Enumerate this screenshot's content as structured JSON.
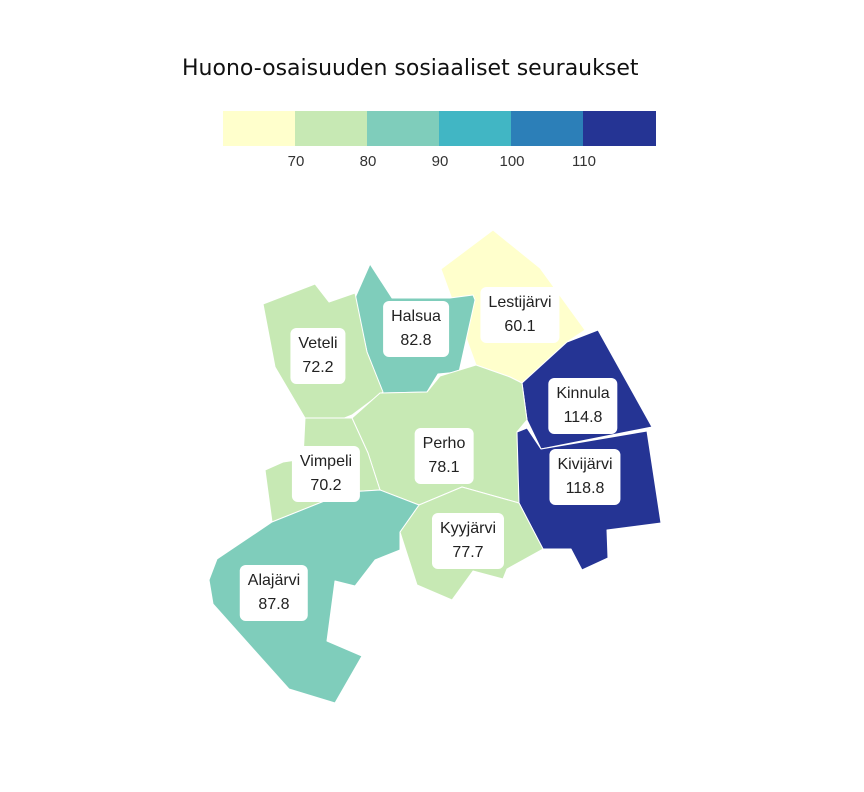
{
  "title": "Huono-osaisuuden sosiaaliset seuraukset",
  "legend": {
    "colors": [
      "#ffffcc",
      "#c7e9b4",
      "#7fcdbb",
      "#41b6c4",
      "#2c7fb8",
      "#253494"
    ],
    "ticks": [
      "70",
      "80",
      "90",
      "100",
      "110"
    ]
  },
  "regions": [
    {
      "id": "lestijarvi",
      "name": "Lestijärvi",
      "value": "60.1",
      "color": "#ffffcc"
    },
    {
      "id": "halsua",
      "name": "Halsua",
      "value": "82.8",
      "color": "#7fcdbb"
    },
    {
      "id": "veteli",
      "name": "Veteli",
      "value": "72.2",
      "color": "#c7e9b4"
    },
    {
      "id": "kinnula",
      "name": "Kinnula",
      "value": "114.8",
      "color": "#253494"
    },
    {
      "id": "perho",
      "name": "Perho",
      "value": "78.1",
      "color": "#c7e9b4"
    },
    {
      "id": "kivijarvi",
      "name": "Kivijärvi",
      "value": "118.8",
      "color": "#253494"
    },
    {
      "id": "vimpeli",
      "name": "Vimpeli",
      "value": "70.2",
      "color": "#c7e9b4"
    },
    {
      "id": "kyyjarvi",
      "name": "Kyyjärvi",
      "value": "77.7",
      "color": "#c7e9b4"
    },
    {
      "id": "alajarvi",
      "name": "Alajärvi",
      "value": "87.8",
      "color": "#7fcdbb"
    }
  ]
}
